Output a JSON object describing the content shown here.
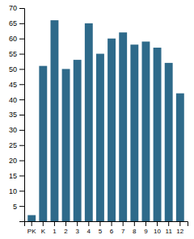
{
  "chart_data": {
    "type": "bar",
    "categories": [
      "PK",
      "K",
      "1",
      "2",
      "3",
      "4",
      "5",
      "6",
      "7",
      "8",
      "9",
      "10",
      "11",
      "12"
    ],
    "values": [
      2,
      51,
      66,
      50,
      53,
      65,
      55,
      60,
      62,
      58,
      59,
      57,
      52,
      42
    ],
    "color": "#2e6a8a",
    "ylim": [
      0,
      70
    ],
    "yticks": [
      5,
      10,
      15,
      20,
      25,
      30,
      35,
      40,
      45,
      50,
      55,
      60,
      65,
      70
    ],
    "grid": false
  }
}
